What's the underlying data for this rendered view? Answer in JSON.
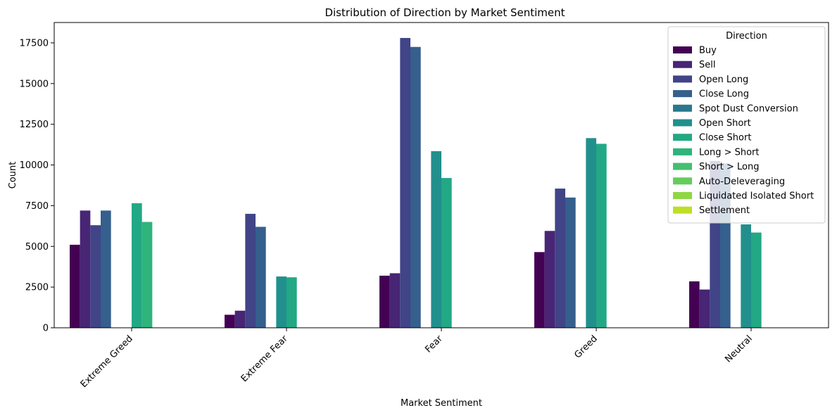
{
  "chart_data": {
    "type": "bar",
    "title": "Distribution of Direction by Market Sentiment",
    "xlabel": "Market Sentiment",
    "ylabel": "Count",
    "ylim": [
      0,
      18750
    ],
    "yticks": [
      0,
      2500,
      5000,
      7500,
      10000,
      12500,
      15000,
      17500
    ],
    "categories": [
      "Extreme Greed",
      "Extreme Fear",
      "Fear",
      "Greed",
      "Neutral"
    ],
    "legend": {
      "title": "Direction",
      "position": "top-right"
    },
    "series": [
      {
        "name": "Buy",
        "color": "#440154",
        "values": [
          5100,
          800,
          3200,
          4650,
          2850
        ]
      },
      {
        "name": "Sell",
        "color": "#482575",
        "values": [
          7200,
          1050,
          3350,
          5950,
          2350
        ]
      },
      {
        "name": "Open Long",
        "color": "#414487",
        "values": [
          6300,
          7000,
          17800,
          8550,
          10250
        ]
      },
      {
        "name": "Close Long",
        "color": "#355f8d",
        "values": [
          7200,
          6200,
          17250,
          8000,
          10100
        ]
      },
      {
        "name": "Spot Dust Conversion",
        "color": "#2a788e",
        "values": [
          0,
          0,
          0,
          0,
          0
        ]
      },
      {
        "name": "Open Short",
        "color": "#21908d",
        "values": [
          0,
          3150,
          10850,
          11650,
          6350
        ]
      },
      {
        "name": "Close Short",
        "color": "#22a884",
        "values": [
          7650,
          3100,
          9200,
          11300,
          5850
        ]
      },
      {
        "name": "Long > Short",
        "color": "#2fb47c",
        "values": [
          6500,
          20,
          20,
          20,
          20
        ]
      },
      {
        "name": "Short > Long",
        "color": "#44bf70",
        "values": [
          20,
          20,
          20,
          20,
          20
        ]
      },
      {
        "name": "Auto-Deleveraging",
        "color": "#66cc5c",
        "values": [
          20,
          20,
          20,
          20,
          20
        ]
      },
      {
        "name": "Liquidated Isolated Short",
        "color": "#8fd744",
        "values": [
          0,
          0,
          0,
          0,
          0
        ]
      },
      {
        "name": "Settlement",
        "color": "#bddf26",
        "values": [
          0,
          0,
          0,
          0,
          0
        ]
      }
    ]
  }
}
